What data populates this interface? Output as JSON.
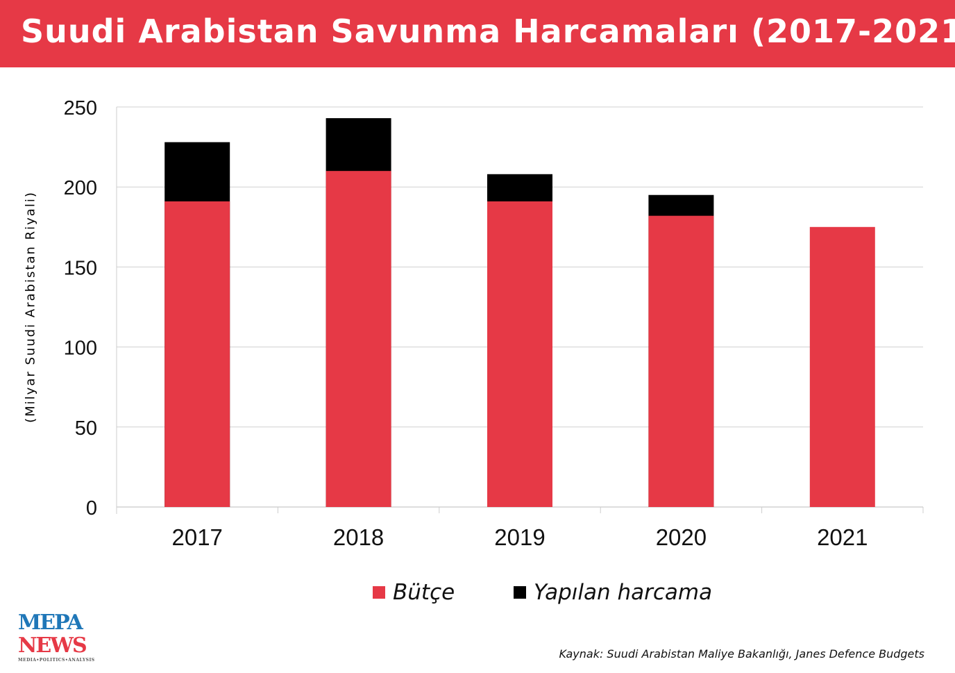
{
  "title": "Suudi Arabistan Savunma Harcamaları (2017-2021)",
  "source": "Kaynak: Suudi Arabistan Maliye Bakanlığı, Janes Defence Budgets",
  "logo": {
    "line1": "MEPA",
    "line2": "NEWS",
    "tagline": "MEDIA•POLITICS•ANALYSIS"
  },
  "colors": {
    "header": "#e63946",
    "budget": "#e63946",
    "spending": "#000000",
    "grid": "#d0d0d0"
  },
  "chart_data": {
    "type": "bar",
    "title": "Suudi Arabistan Savunma Harcamaları (2017-2021)",
    "ylabel": "(Milyar Suudi Arabistan Riyali)",
    "xlabel": "",
    "categories": [
      "2017",
      "2018",
      "2019",
      "2020",
      "2021"
    ],
    "series": [
      {
        "name": "Bütçe",
        "values": [
          191,
          210,
          191,
          182,
          175
        ]
      },
      {
        "name": "Yapılan harcama",
        "values": [
          228,
          243,
          208,
          195,
          null
        ]
      }
    ],
    "ylim": [
      0,
      250
    ],
    "yticks": [
      "0",
      "50",
      "100",
      "150",
      "200",
      "250"
    ],
    "grid": true,
    "legend": "bottom"
  }
}
